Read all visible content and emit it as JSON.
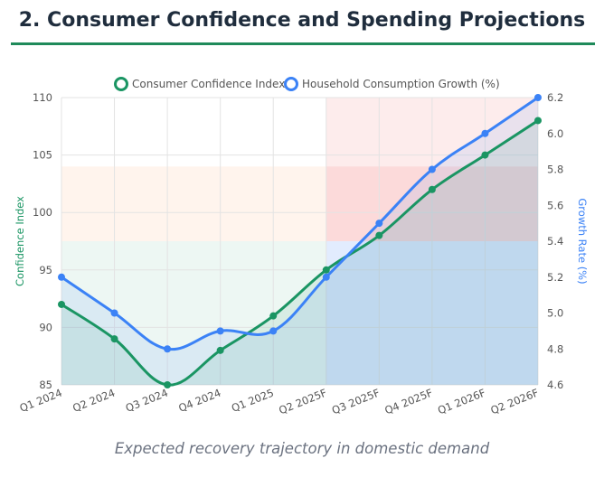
{
  "page": {
    "title": "2. Consumer Confidence and Spending Projections",
    "subtitle": "Expected recovery trajectory in domestic demand"
  },
  "colors": {
    "title_rule": "#1f8a5a",
    "confidence": "#1a9563",
    "consumption": "#3b82f6"
  },
  "chart_data": {
    "type": "line",
    "categories": [
      "Q1 2024",
      "Q2 2024",
      "Q3 2024",
      "Q4 2024",
      "Q1 2025",
      "Q2 2025F",
      "Q3 2025F",
      "Q4 2025F",
      "Q1 2026F",
      "Q2 2026F"
    ],
    "series": [
      {
        "name": "Consumer Confidence Index",
        "axis": "left",
        "color": "#1a9563",
        "values": [
          92,
          89,
          85,
          88,
          91,
          95,
          98,
          102,
          105,
          108
        ]
      },
      {
        "name": "Household Consumption Growth (%)",
        "axis": "right",
        "color": "#3b82f6",
        "values": [
          5.2,
          5.0,
          4.8,
          4.9,
          4.9,
          5.2,
          5.5,
          5.8,
          6.0,
          6.2
        ]
      }
    ],
    "y_left": {
      "label": "Confidence Index",
      "range": [
        85,
        110
      ],
      "ticks": [
        85,
        90,
        95,
        100,
        105,
        110
      ]
    },
    "y_right": {
      "label": "Growth Rate (%)",
      "range": [
        4.6,
        6.2
      ],
      "ticks": [
        "4.6",
        "4.8",
        "5.0",
        "5.2",
        "5.4",
        "5.6",
        "5.8",
        "6.0",
        "6.2"
      ]
    },
    "legend": "top-center",
    "grid": true,
    "bands": [
      {
        "x_from": "Q1 2024",
        "x_to": "Q2 2025F",
        "y_from": 85,
        "y_to": 97.5,
        "color": "#1a9563",
        "opacity": 0.08
      },
      {
        "x_from": "Q1 2024",
        "x_to": "Q2 2025F",
        "y_from": 97.5,
        "y_to": 104,
        "color": "#f97316",
        "opacity": 0.08
      },
      {
        "x_from": "Q2 2025F",
        "x_to": "Q2 2026F",
        "y_from": 85,
        "y_to": 97.5,
        "color": "#3b82f6",
        "opacity": 0.15
      },
      {
        "x_from": "Q2 2025F",
        "x_to": "Q2 2026F",
        "y_from": 97.5,
        "y_to": 104,
        "color": "#ef4444",
        "opacity": 0.2
      },
      {
        "x_from": "Q2 2025F",
        "x_to": "Q2 2026F",
        "y_from": 104,
        "y_to": 110,
        "color": "#ef4444",
        "opacity": 0.1
      }
    ]
  }
}
